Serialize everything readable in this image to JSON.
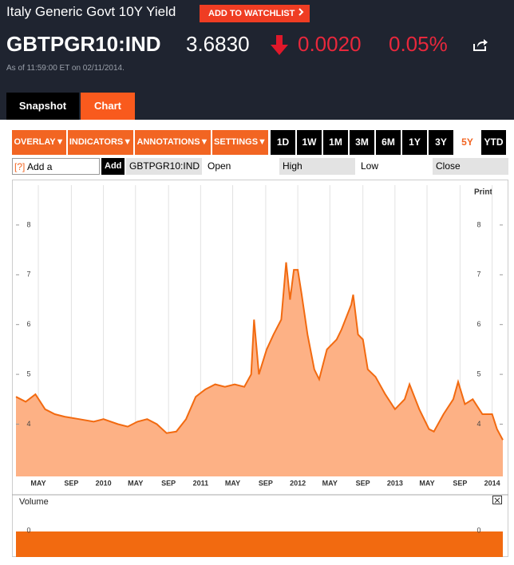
{
  "header": {
    "title": "Italy Generic Govt 10Y Yield",
    "watchlist_button": "ADD TO WATCHLIST",
    "ticker": "GBTPGR10:IND",
    "price": "3.6830",
    "change": "0.0020",
    "change_percent": "0.05%",
    "timestamp": "As of 11:59:00 ET on 02/11/2014."
  },
  "tabs": [
    "Snapshot",
    "Chart"
  ],
  "toolbar": {
    "menus": [
      "OVERLAY▼",
      "INDICATORS▼",
      "ANNOTATIONS▼",
      "SETTINGS▼"
    ],
    "periods": [
      "1D",
      "1W",
      "1M",
      "3M",
      "6M",
      "1Y",
      "3Y",
      "5Y",
      "YTD"
    ],
    "selected_period": "5Y"
  },
  "comparison_row": {
    "input": "Add a Comparison",
    "help": "[?]",
    "add_button": "Add",
    "ticker": "GBTPGR10:IND",
    "fields": [
      "Open",
      "High",
      "Low",
      "Close"
    ]
  },
  "chart_data": {
    "type": "area",
    "print_label": "Print",
    "series": [
      {
        "color": "#f26a10",
        "fill": "#fdb185",
        "x": [
          2009.1,
          2009.2,
          2009.3,
          2009.4,
          2009.5,
          2009.6,
          2009.75,
          2009.9,
          2010.0,
          2010.15,
          2010.25,
          2010.35,
          2010.45,
          2010.55,
          2010.65,
          2010.75,
          2010.85,
          2010.95,
          2011.05,
          2011.15,
          2011.25,
          2011.35,
          2011.45,
          2011.52,
          2011.55,
          2011.6,
          2011.68,
          2011.75,
          2011.83,
          2011.88,
          2011.92,
          2011.96,
          2012.0,
          2012.04,
          2012.1,
          2012.17,
          2012.22,
          2012.3,
          2012.4,
          2012.45,
          2012.55,
          2012.57,
          2012.62,
          2012.67,
          2012.72,
          2012.8,
          2012.9,
          2013.0,
          2013.1,
          2013.15,
          2013.25,
          2013.35,
          2013.4,
          2013.5,
          2013.6,
          2013.65,
          2013.72,
          2013.8,
          2013.9,
          2014.0,
          2014.05,
          2014.11
        ],
        "values": [
          4.55,
          4.45,
          4.6,
          4.3,
          4.2,
          4.15,
          4.1,
          4.05,
          4.1,
          4.0,
          3.95,
          4.05,
          4.1,
          4.0,
          3.82,
          3.85,
          4.1,
          4.55,
          4.7,
          4.8,
          4.75,
          4.8,
          4.75,
          5.0,
          6.1,
          5.0,
          5.5,
          5.8,
          6.1,
          7.25,
          6.5,
          7.1,
          7.1,
          6.6,
          5.8,
          5.1,
          4.9,
          5.5,
          5.7,
          5.9,
          6.4,
          6.6,
          5.8,
          5.7,
          5.1,
          4.95,
          4.6,
          4.3,
          4.5,
          4.8,
          4.3,
          3.9,
          3.85,
          4.2,
          4.5,
          4.85,
          4.4,
          4.5,
          4.2,
          4.2,
          3.9,
          3.683
        ]
      }
    ],
    "xlim": [
      2009.1,
      2014.11
    ],
    "xticks": [
      {
        "value": 2009.33,
        "label": "MAY"
      },
      {
        "value": 2009.67,
        "label": "SEP"
      },
      {
        "value": 2010,
        "label": "2010"
      },
      {
        "value": 2010.33,
        "label": "MAY"
      },
      {
        "value": 2010.67,
        "label": "SEP"
      },
      {
        "value": 2011,
        "label": "2011"
      },
      {
        "value": 2011.33,
        "label": "MAY"
      },
      {
        "value": 2011.67,
        "label": "SEP"
      },
      {
        "value": 2012,
        "label": "2012"
      },
      {
        "value": 2012.33,
        "label": "MAY"
      },
      {
        "value": 2012.67,
        "label": "SEP"
      },
      {
        "value": 2013,
        "label": "2013"
      },
      {
        "value": 2013.33,
        "label": "MAY"
      },
      {
        "value": 2013.67,
        "label": "SEP"
      },
      {
        "value": 2014,
        "label": "2014"
      }
    ],
    "ylim": [
      2.95,
      8.8
    ],
    "yticks": [
      4,
      5,
      6,
      7,
      8
    ],
    "grid": true
  },
  "volume": {
    "label": "Volume",
    "yticks": [
      0
    ]
  }
}
